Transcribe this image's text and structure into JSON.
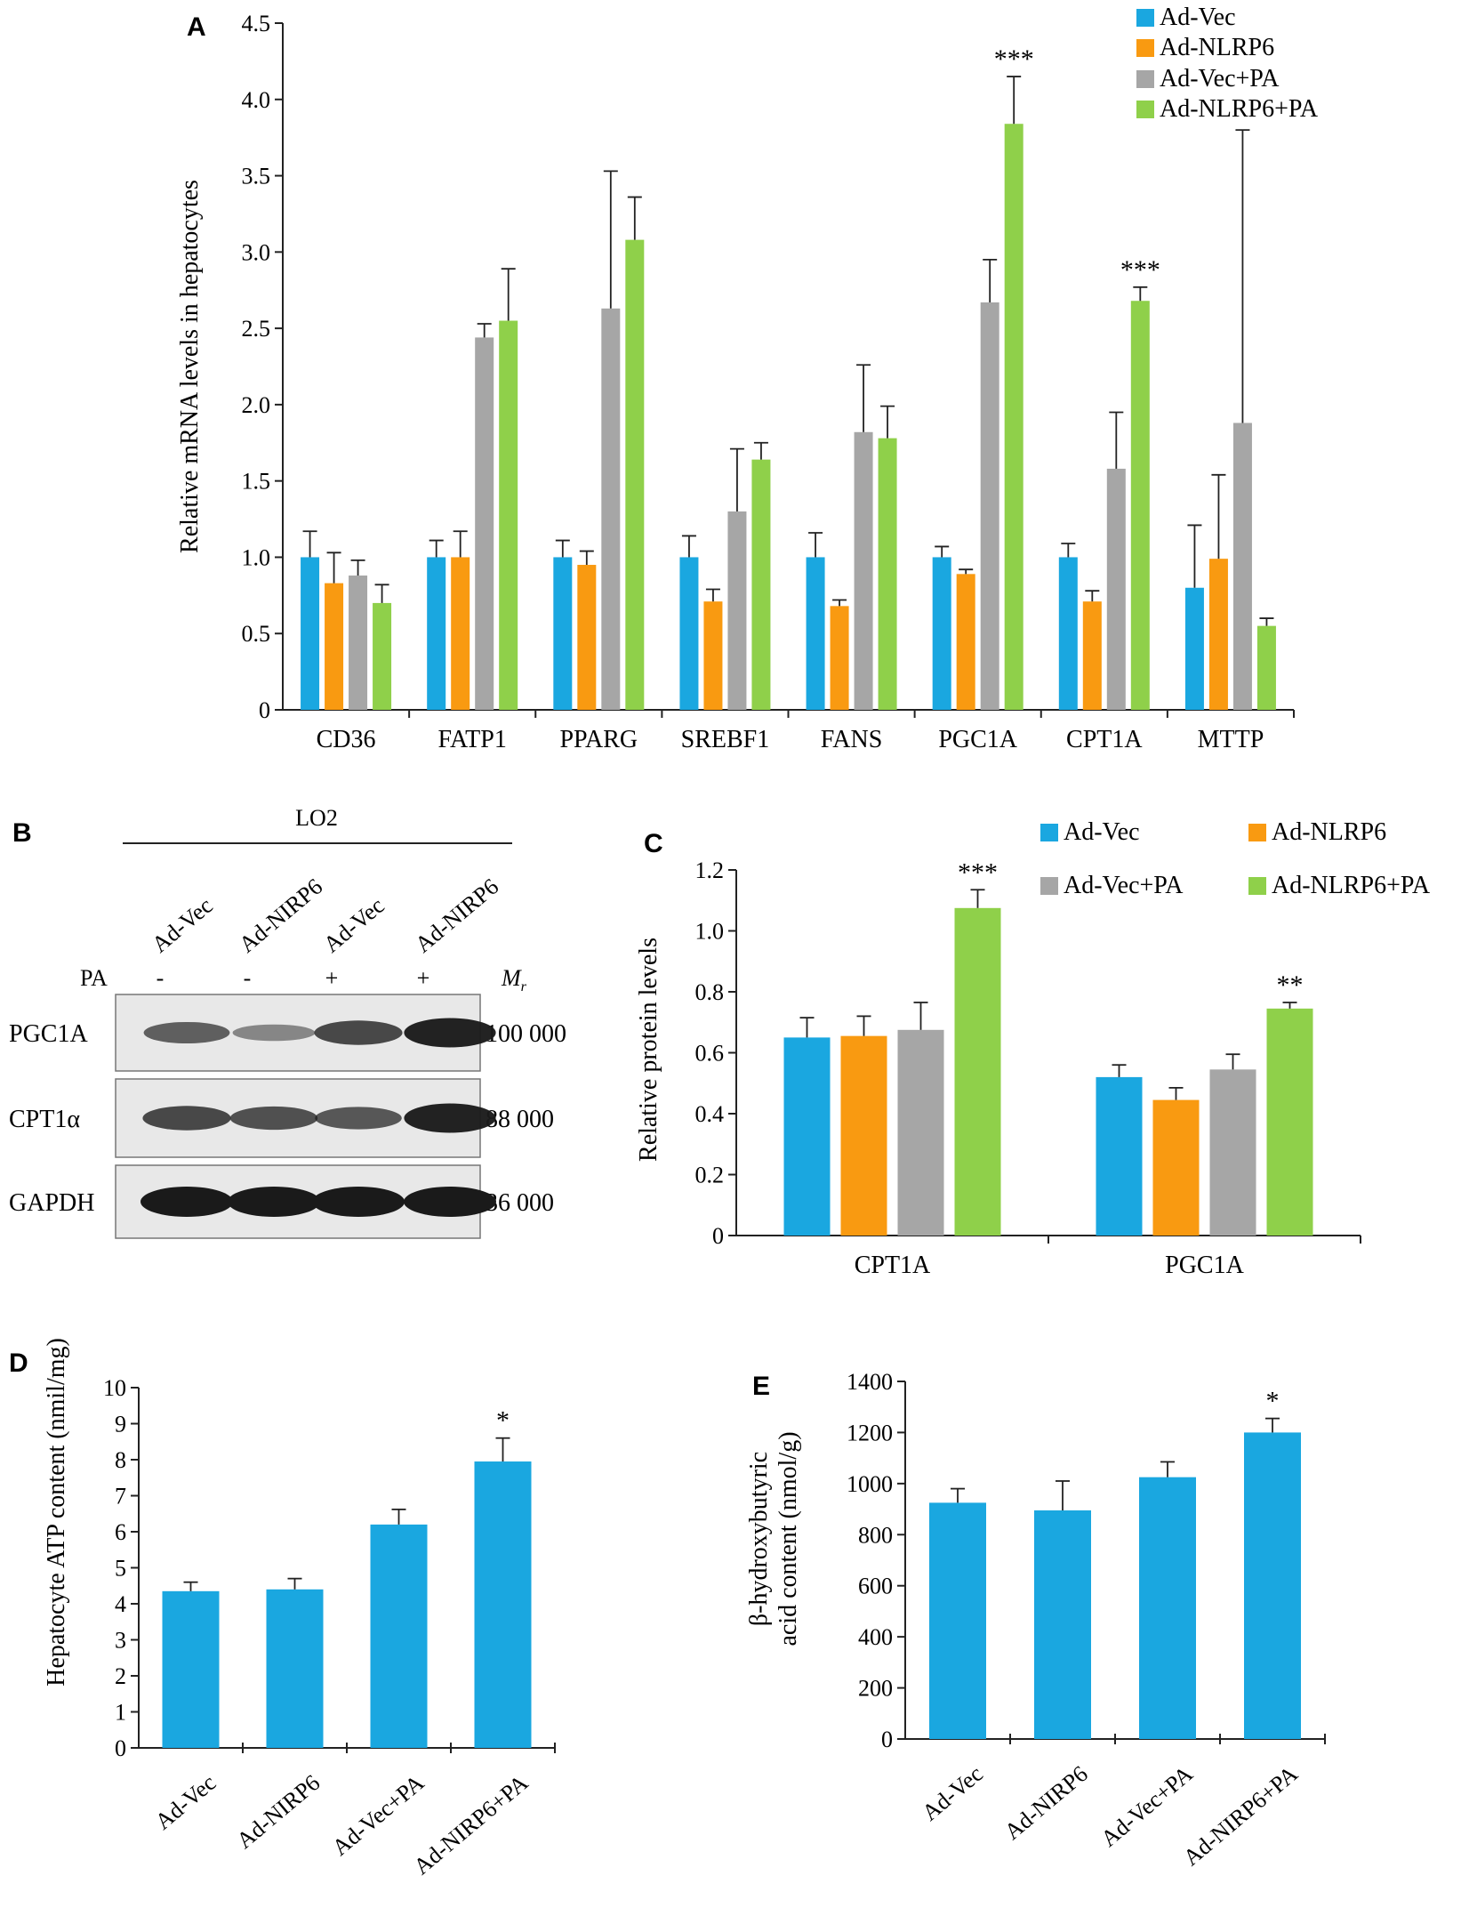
{
  "colors": {
    "vec": "#1aa7e0",
    "nlrp6": "#f99a11",
    "vec_pa": "#a6a6a6",
    "nlrp6_pa": "#8fd04a",
    "axis": "#222222",
    "blot_bg": "#e8e8e8",
    "band": "#1a1a1a"
  },
  "chart_data": [
    {
      "panel": "A",
      "type": "bar",
      "ylabel": "Relative mRNA levels in hepatocytes",
      "ylim": [
        0,
        4.5
      ],
      "yticks": [
        "0",
        "0.5",
        "1.0",
        "1.5",
        "2.0",
        "2.5",
        "3.0",
        "3.5",
        "4.0",
        "4.5"
      ],
      "categories": [
        "CD36",
        "FATP1",
        "PPARG",
        "SREBF1",
        "FANS",
        "PGC1A",
        "CPT1A",
        "MTTP"
      ],
      "legend_position": "top-right",
      "series": [
        {
          "name": "Ad-Vec",
          "values": [
            1.0,
            1.0,
            1.0,
            1.0,
            1.0,
            1.0,
            1.0,
            0.8
          ],
          "errors": [
            0.17,
            0.11,
            0.11,
            0.14,
            0.16,
            0.07,
            0.09,
            0.41
          ]
        },
        {
          "name": "Ad-NLRP6",
          "values": [
            0.83,
            1.0,
            0.95,
            0.71,
            0.68,
            0.89,
            0.71,
            0.99
          ],
          "errors": [
            0.2,
            0.17,
            0.09,
            0.08,
            0.04,
            0.03,
            0.07,
            0.55
          ]
        },
        {
          "name": "Ad-Vec+PA",
          "values": [
            0.88,
            2.44,
            2.63,
            1.3,
            1.82,
            2.67,
            1.58,
            1.88
          ],
          "errors": [
            0.1,
            0.09,
            0.9,
            0.41,
            0.44,
            0.28,
            0.37,
            1.92
          ]
        },
        {
          "name": "Ad-NLRP6+PA",
          "values": [
            0.7,
            2.55,
            3.08,
            1.64,
            1.78,
            3.84,
            2.68,
            0.55
          ],
          "errors": [
            0.12,
            0.34,
            0.28,
            0.11,
            0.21,
            0.31,
            0.09,
            0.05
          ]
        }
      ],
      "annotations": [
        {
          "category": "PGC1A",
          "series": "Ad-NLRP6+PA",
          "text": "***"
        },
        {
          "category": "CPT1A",
          "series": "Ad-NLRP6+PA",
          "text": "***"
        }
      ]
    },
    {
      "panel": "C",
      "type": "bar",
      "ylabel": "Relative protein levels",
      "ylim": [
        0,
        1.2
      ],
      "yticks": [
        "0",
        "0.2",
        "0.4",
        "0.6",
        "0.8",
        "1.0",
        "1.2"
      ],
      "categories": [
        "CPT1A",
        "PGC1A"
      ],
      "legend_position": "top",
      "series": [
        {
          "name": "Ad-Vec",
          "values": [
            0.65,
            0.52
          ],
          "errors": [
            0.065,
            0.04
          ]
        },
        {
          "name": "Ad-NLRP6",
          "values": [
            0.655,
            0.445
          ],
          "errors": [
            0.065,
            0.04
          ]
        },
        {
          "name": "Ad-Vec+PA",
          "values": [
            0.675,
            0.545
          ],
          "errors": [
            0.09,
            0.05
          ]
        },
        {
          "name": "Ad-NLRP6+PA",
          "values": [
            1.075,
            0.745
          ],
          "errors": [
            0.06,
            0.02
          ]
        }
      ],
      "annotations": [
        {
          "category": "CPT1A",
          "series": "Ad-NLRP6+PA",
          "text": "***"
        },
        {
          "category": "PGC1A",
          "series": "Ad-NLRP6+PA",
          "text": "**"
        }
      ]
    },
    {
      "panel": "D",
      "type": "bar",
      "ylabel": "Hepatocyte ATP content (nmil/mg)",
      "ylim": [
        0,
        10
      ],
      "yticks": [
        "0",
        "1",
        "2",
        "3",
        "4",
        "5",
        "6",
        "7",
        "8",
        "9",
        "10"
      ],
      "categories": [
        "Ad-Vec",
        "Ad-NIRP6",
        "Ad-Vec+PA",
        "Ad-NIRP6+PA"
      ],
      "values": [
        4.35,
        4.4,
        6.2,
        7.95
      ],
      "errors": [
        0.25,
        0.3,
        0.42,
        0.65
      ],
      "annotations": [
        {
          "index": 3,
          "text": "*"
        }
      ]
    },
    {
      "panel": "E",
      "type": "bar",
      "ylabel_lines": [
        "β-hydroxybutyric",
        "acid content (nmol/g)"
      ],
      "ylim": [
        0,
        1400
      ],
      "yticks": [
        "0",
        "200",
        "400",
        "600",
        "800",
        "1000",
        "1200",
        "1400"
      ],
      "categories": [
        "Ad-Vec",
        "Ad-NIRP6",
        "Ad-Vec+PA",
        "Ad-NIRP6+PA"
      ],
      "values": [
        925,
        895,
        1025,
        1200
      ],
      "errors": [
        55,
        115,
        60,
        55
      ],
      "annotations": [
        {
          "index": 3,
          "text": "*"
        }
      ]
    }
  ],
  "blot": {
    "panel": "B",
    "cell_line": "LO2",
    "lanes": [
      "Ad-Vec",
      "Ad-NIRP6",
      "Ad-Vec",
      "Ad-NIRP6"
    ],
    "pa_label": "PA",
    "pa": [
      "-",
      "-",
      "+",
      "+"
    ],
    "mr_label": "M",
    "mr_sub": "r",
    "rows": [
      {
        "name": "PGC1A",
        "mass": "100 000",
        "intensity": [
          0.55,
          0.3,
          0.7,
          0.95
        ]
      },
      {
        "name": "CPT1α",
        "mass": "88 000",
        "intensity": [
          0.7,
          0.65,
          0.6,
          0.95
        ]
      },
      {
        "name": "GAPDH",
        "mass": "36 000",
        "intensity": [
          1.0,
          1.0,
          1.0,
          1.0
        ]
      }
    ]
  }
}
